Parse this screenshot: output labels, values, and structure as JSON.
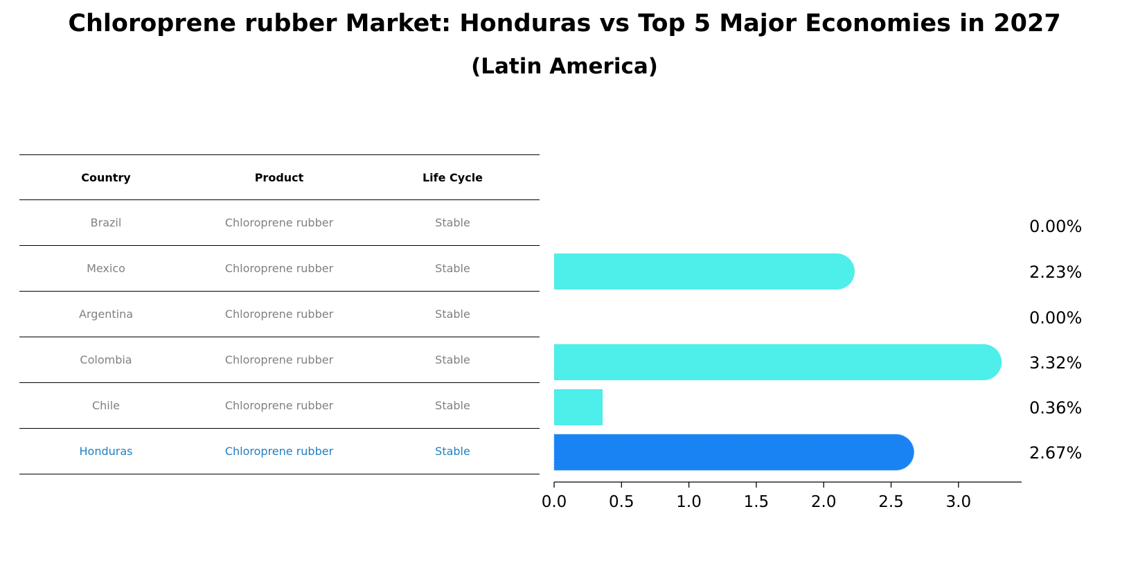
{
  "title": "Chloroprene rubber Market: Honduras vs Top 5 Major Economies in 2027",
  "subtitle": "(Latin America)",
  "table": {
    "headers": [
      "Country",
      "Product",
      "Life Cycle"
    ],
    "rows": [
      [
        "Brazil",
        "Chloroprene rubber",
        "Stable"
      ],
      [
        "Mexico",
        "Chloroprene rubber",
        "Stable"
      ],
      [
        "Argentina",
        "Chloroprene rubber",
        "Stable"
      ],
      [
        "Colombia",
        "Chloroprene rubber",
        "Stable"
      ],
      [
        "Chile",
        "Chloroprene rubber",
        "Stable"
      ],
      [
        "Honduras",
        "Chloroprene rubber",
        "Stable"
      ]
    ]
  },
  "chart_data": {
    "type": "bar",
    "orientation": "horizontal",
    "categories": [
      "Brazil",
      "Mexico",
      "Argentina",
      "Colombia",
      "Chile",
      "Honduras"
    ],
    "values": [
      0.0,
      2.23,
      0.0,
      3.32,
      0.36,
      2.67
    ],
    "value_labels": [
      "0.00%",
      "2.23%",
      "0.00%",
      "3.32%",
      "0.36%",
      "2.67%"
    ],
    "highlight": "Honduras",
    "xlim": [
      0,
      3.5
    ],
    "xticks": [
      "0.0",
      "0.5",
      "1.0",
      "1.5",
      "2.0",
      "2.5",
      "3.0"
    ],
    "grid": false,
    "colors": {
      "bar": "#4eeeea",
      "highlight": "#1a83f3"
    }
  }
}
